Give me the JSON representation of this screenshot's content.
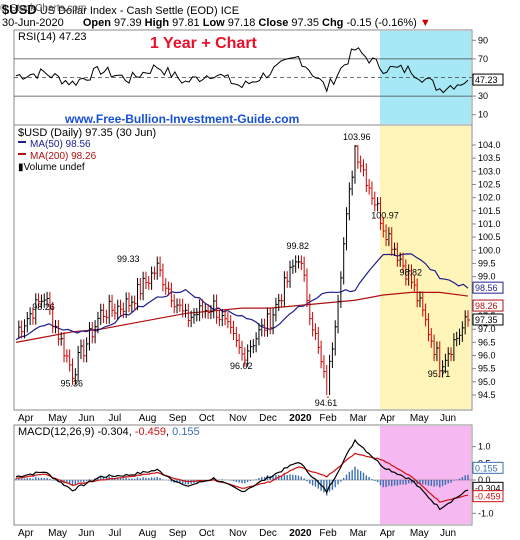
{
  "header": {
    "symbol": "$USD",
    "name": "US Dollar Index - Cash Settle (EOD)",
    "exchange": "ICE",
    "date": "30-Jun-2020",
    "open_label": "Open",
    "open": "97.39",
    "high_label": "High",
    "high": "97.81",
    "low_label": "Low",
    "low": "97.18",
    "close_label": "Close",
    "close": "97.35",
    "chg_label": "Chg",
    "chg": "-0.15 (-0.16%)",
    "brand": "© StockCharts.com",
    "overlay_title": "1 Year + Chart",
    "website": "www.Free-Bullion-Investment-Guide.com"
  },
  "colors": {
    "price_up": "#000000",
    "price_down": "#cc0000",
    "ma50": "#1f1f8f",
    "ma200": "#b01010",
    "rsi_line": "#000000",
    "macd_line": "#000000",
    "signal_line": "#d01010",
    "hist": "#3a6fb0",
    "rsi_highlight": "#a6e8f5",
    "price_highlight": "#fff5b8",
    "macd_highlight": "#f5b8f0",
    "overlay_title": "#e8102a",
    "website": "#1650d8"
  },
  "chart_data": [
    {
      "type": "line",
      "panel": "rsi",
      "title": "RSI(14) 47.23",
      "y_ticks": [
        "90",
        "70",
        "50",
        "30",
        "10"
      ],
      "ylim": [
        0,
        100
      ],
      "reference_lines": [
        70,
        50,
        30
      ],
      "last_label": "47.23",
      "x": [
        "2019-04",
        "2019-05",
        "2019-06",
        "2019-07",
        "2019-08",
        "2019-09",
        "2019-10",
        "2019-11",
        "2019-12",
        "2020-01",
        "2020-02",
        "2020-03a",
        "2020-03b",
        "2020-04",
        "2020-05",
        "2020-06",
        "2020-06-30"
      ],
      "values": [
        52,
        55,
        44,
        58,
        48,
        62,
        45,
        55,
        40,
        56,
        72,
        38,
        80,
        60,
        58,
        38,
        47.23
      ]
    },
    {
      "type": "line",
      "panel": "price",
      "title": "$USD (Daily) 97.35 (30 Jun)",
      "legend": [
        {
          "name": "MA(50) 98.56",
          "color": "#1f1f8f"
        },
        {
          "name": "MA(200) 98.26",
          "color": "#b01010"
        },
        {
          "name": "Volume undef",
          "color": "#000000"
        }
      ],
      "y_ticks": [
        "104.0",
        "103.5",
        "103.0",
        "102.5",
        "102.0",
        "101.5",
        "101.0",
        "100.5",
        "100.0",
        "99.5",
        "99.0",
        "98.5",
        "98.0",
        "97.5",
        "97.0",
        "96.5",
        "96.0",
        "95.5",
        "95.0",
        "94.5"
      ],
      "ylim": [
        94.5,
        104.0
      ],
      "x_labels": [
        "Apr",
        "May",
        "Jun",
        "Jul",
        "Aug",
        "Sep",
        "Oct",
        "Nov",
        "Dec",
        "2020",
        "Feb",
        "Mar",
        "Apr",
        "May",
        "Jun"
      ],
      "annotations": [
        {
          "label": "98.26",
          "x": "2019-05",
          "value": 98.26
        },
        {
          "label": "95.36",
          "x": "2019-06",
          "value": 95.36
        },
        {
          "label": "99.33",
          "x": "2019-08",
          "value": 99.33
        },
        {
          "label": "96.02",
          "x": "2019-12",
          "value": 96.02
        },
        {
          "label": "99.82",
          "x": "2020-02",
          "value": 99.82
        },
        {
          "label": "94.61",
          "x": "2020-03a",
          "value": 94.61
        },
        {
          "label": "103.96",
          "x": "2020-03b",
          "value": 103.96
        },
        {
          "label": "100.97",
          "x": "2020-04",
          "value": 100.97
        },
        {
          "label": "98.82",
          "x": "2020-05",
          "value": 98.82
        },
        {
          "label": "95.71",
          "x": "2020-06",
          "value": 95.71
        }
      ],
      "right_labels": [
        "98.56",
        "98.26",
        "97.35"
      ],
      "series": [
        {
          "name": "$USD",
          "x": [
            "2019-04",
            "2019-05",
            "2019-06",
            "2019-07",
            "2019-08",
            "2019-09",
            "2019-10",
            "2019-11",
            "2019-12",
            "2020-01",
            "2020-02",
            "2020-03a",
            "2020-03b",
            "2020-04",
            "2020-05",
            "2020-06",
            "2020-06-30"
          ],
          "values": [
            96.9,
            98.26,
            95.36,
            97.6,
            98.0,
            99.33,
            97.4,
            97.9,
            96.02,
            97.4,
            99.82,
            94.61,
            103.96,
            100.97,
            98.82,
            95.71,
            97.35
          ]
        },
        {
          "name": "MA(50) 98.56",
          "x": [
            "2019-04",
            "2019-05",
            "2019-06",
            "2019-07",
            "2019-08",
            "2019-09",
            "2019-10",
            "2019-11",
            "2019-12",
            "2020-01",
            "2020-02",
            "2020-03a",
            "2020-03b",
            "2020-04",
            "2020-05",
            "2020-06",
            "2020-06-30"
          ],
          "values": [
            96.6,
            97.2,
            96.9,
            97.0,
            97.6,
            98.2,
            98.5,
            97.8,
            97.5,
            97.0,
            97.8,
            98.4,
            98.5,
            99.8,
            99.9,
            99.0,
            98.56
          ]
        },
        {
          "name": "MA(200) 98.26",
          "x": [
            "2019-04",
            "2019-05",
            "2019-06",
            "2019-07",
            "2019-08",
            "2019-09",
            "2019-10",
            "2019-11",
            "2019-12",
            "2020-01",
            "2020-02",
            "2020-03a",
            "2020-03b",
            "2020-04",
            "2020-05",
            "2020-06",
            "2020-06-30"
          ],
          "values": [
            96.5,
            96.7,
            96.9,
            97.0,
            97.2,
            97.4,
            97.6,
            97.7,
            97.8,
            97.8,
            97.9,
            98.0,
            98.1,
            98.3,
            98.4,
            98.4,
            98.26
          ]
        }
      ]
    },
    {
      "type": "line",
      "panel": "macd",
      "title": "MACD(12,26,9) -0.304, -0.459, 0.155",
      "title_parts": {
        "name": "MACD(12,26,9)",
        "macd": "-0.304",
        "signal": "-0.459",
        "hist": "0.155"
      },
      "y_ticks": [
        "1.0",
        "0.5",
        "0.0",
        "-0.5",
        "-1.0"
      ],
      "ylim": [
        -1.2,
        1.5
      ],
      "right_labels": [
        "0.155",
        "-0.304",
        "-0.459"
      ],
      "x_labels": [
        "Apr",
        "May",
        "Jun",
        "Jul",
        "Aug",
        "Sep",
        "Oct",
        "Nov",
        "Dec",
        "2020",
        "Feb",
        "Mar",
        "Apr",
        "May",
        "Jun"
      ],
      "series": [
        {
          "name": "MACD",
          "x": [
            "2019-04",
            "2019-05",
            "2019-06",
            "2019-07",
            "2019-08",
            "2019-09",
            "2019-10",
            "2019-11",
            "2019-12",
            "2020-01",
            "2020-02",
            "2020-03a",
            "2020-03b",
            "2020-04",
            "2020-05",
            "2020-06",
            "2020-06-30"
          ],
          "values": [
            0.1,
            0.25,
            -0.3,
            0.1,
            0.15,
            0.3,
            -0.2,
            0.05,
            -0.35,
            0.1,
            0.55,
            -0.35,
            1.2,
            0.4,
            0.0,
            -0.85,
            -0.304
          ]
        },
        {
          "name": "Signal",
          "x": [
            "2019-04",
            "2019-05",
            "2019-06",
            "2019-07",
            "2019-08",
            "2019-09",
            "2019-10",
            "2019-11",
            "2019-12",
            "2020-01",
            "2020-02",
            "2020-03a",
            "2020-03b",
            "2020-04",
            "2020-05",
            "2020-06",
            "2020-06-30"
          ],
          "values": [
            0.05,
            0.18,
            -0.15,
            0.0,
            0.1,
            0.22,
            -0.05,
            0.0,
            -0.25,
            -0.05,
            0.4,
            0.1,
            0.8,
            0.6,
            0.1,
            -0.65,
            -0.459
          ]
        }
      ]
    }
  ]
}
